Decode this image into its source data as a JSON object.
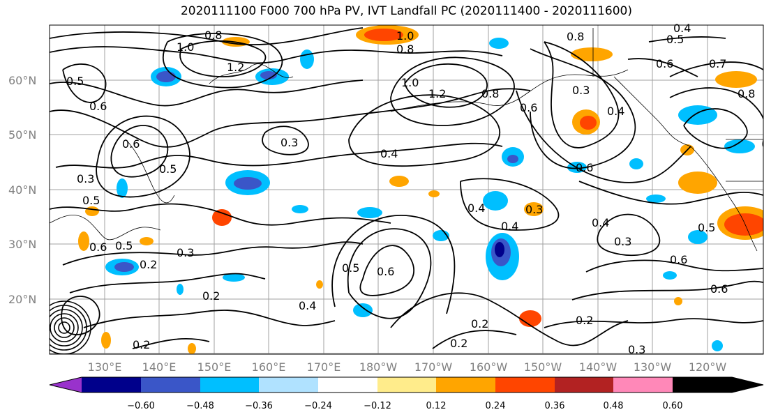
{
  "title": "2020111100 F000 700 hPa PV, IVT Landfall PC (2020111400 - 2020111600)",
  "map": {
    "lat_labels": [
      "60°N",
      "50°N",
      "40°N",
      "30°N",
      "20°N"
    ],
    "lon_labels": [
      "130°E",
      "140°E",
      "150°E",
      "160°E",
      "170°E",
      "180°W",
      "170°W",
      "160°W",
      "150°W",
      "140°W",
      "130°W",
      "120°W"
    ],
    "contour_labels": [
      "0.8",
      "1.0",
      "1.2",
      "0.5",
      "0.6",
      "1.0",
      "0.8",
      "0.8",
      "0.5",
      "0.4",
      "0.6",
      "0.7",
      "1.0",
      "1.2",
      "0.8",
      "0.3",
      "0.5",
      "0.6",
      "0.3",
      "0.4",
      "0.5",
      "0.3",
      "0.4",
      "0.6",
      "0.5",
      "0.6",
      "0.3",
      "0.2",
      "0.4",
      "0.3",
      "0.4",
      "0.5",
      "0.6",
      "0.4",
      "0.5",
      "0.6",
      "0.3",
      "0.2",
      "0.6",
      "0.2",
      "0.2",
      "0.4",
      "0.2",
      "0.2",
      "0.3",
      "0.8",
      "0.6"
    ]
  },
  "colorbar": {
    "ticks": [
      "−0.60",
      "−0.48",
      "−0.36",
      "−0.24",
      "−0.12",
      "0.12",
      "0.24",
      "0.36",
      "0.48",
      "0.60"
    ],
    "colors": [
      "#9932cc",
      "#00008b",
      "#3a56c8",
      "#00bfff",
      "#b0e2ff",
      "#ffffff",
      "#ffec8b",
      "#ffa500",
      "#ff4500",
      "#b22222",
      "#ff88b8"
    ]
  }
}
